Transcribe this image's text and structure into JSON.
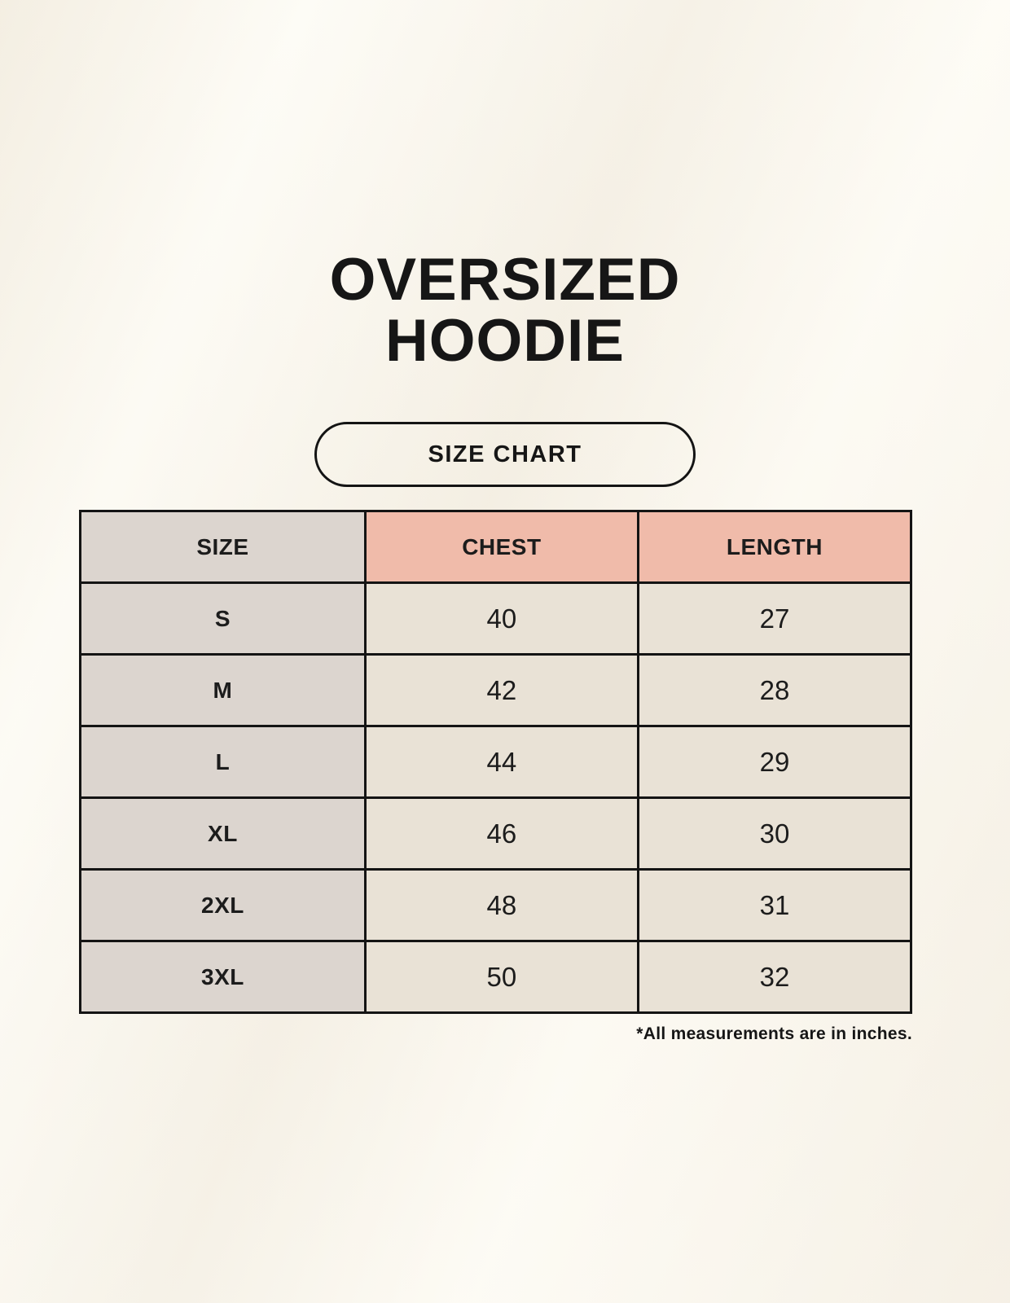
{
  "header": {
    "title_line1": "OVERSIZED",
    "title_line2": "HOODIE",
    "size_chart_button_label": "SIZE CHART"
  },
  "chart_data": {
    "type": "table",
    "title": "OVERSIZED HOODIE",
    "subtitle": "SIZE CHART",
    "columns": [
      "SIZE",
      "CHEST",
      "LENGTH"
    ],
    "rows": [
      [
        "S",
        40,
        27
      ],
      [
        "M",
        42,
        28
      ],
      [
        "L",
        44,
        29
      ],
      [
        "XL",
        46,
        30
      ],
      [
        "2XL",
        48,
        31
      ],
      [
        "3XL",
        50,
        32
      ]
    ],
    "footnote": "*All measurements are in inches.",
    "units": "inches"
  },
  "colors": {
    "page_background": "#faf6ec",
    "header_accent_pink": "#f0bbaa",
    "size_column_gray": "#dcd5cf",
    "data_cell_cream": "#e9e2d6",
    "table_border": "#141414",
    "text": "#161616"
  }
}
